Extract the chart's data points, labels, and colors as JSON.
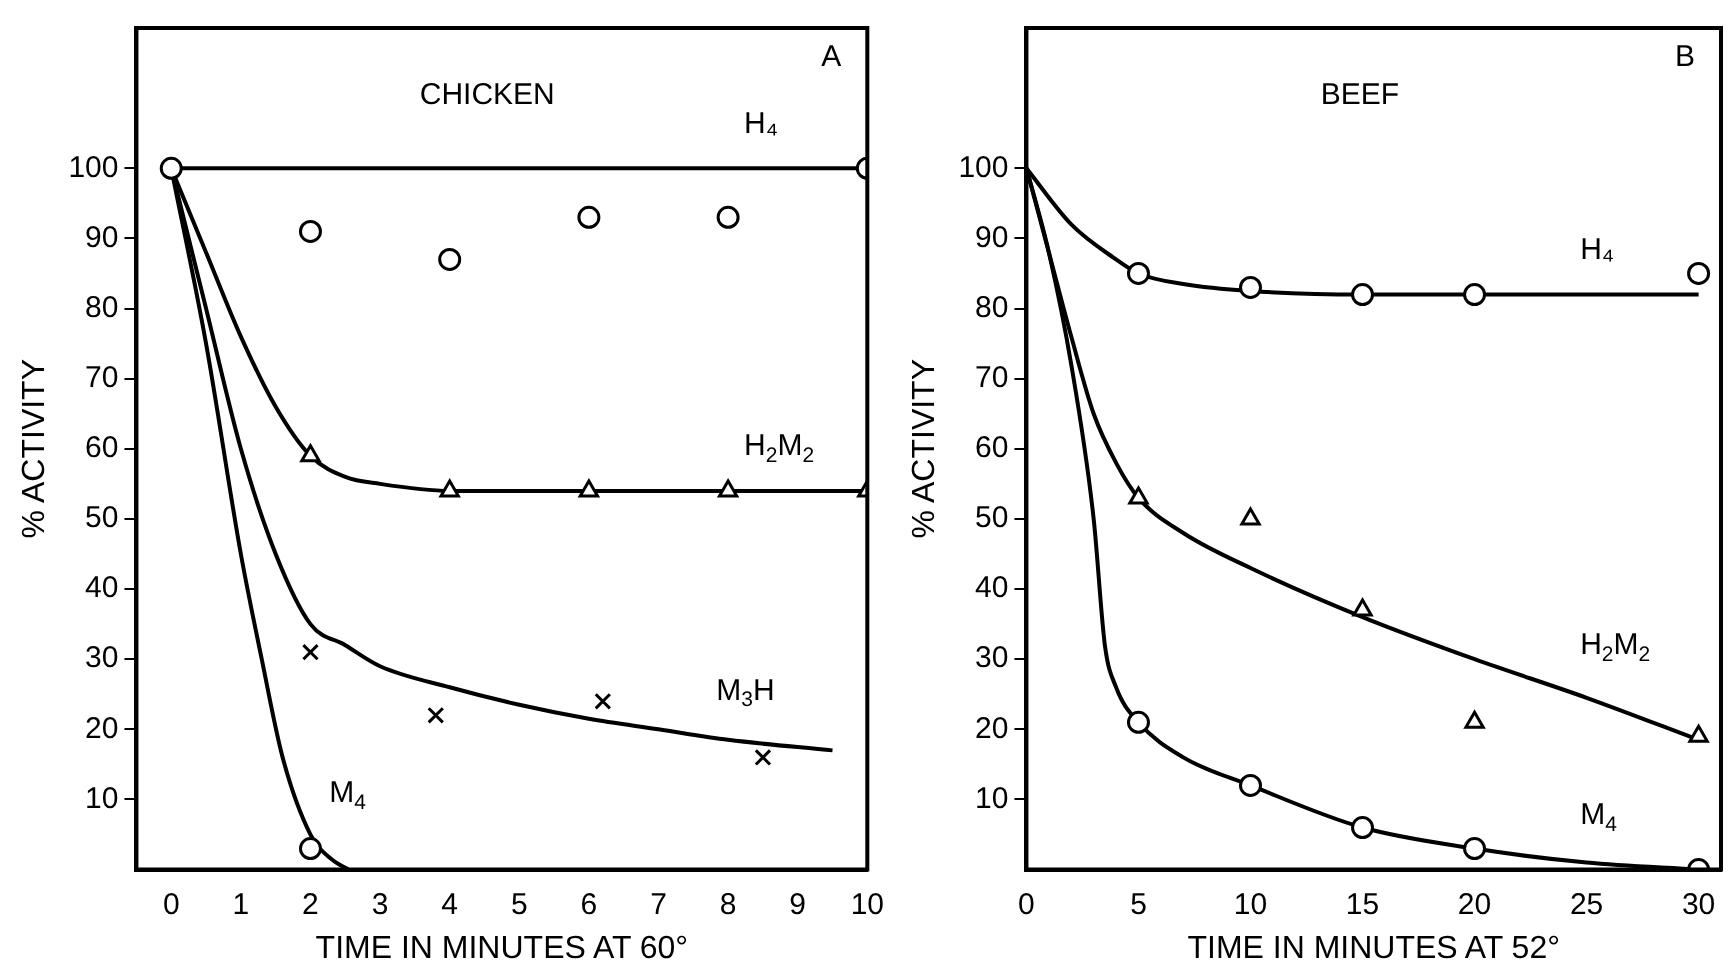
{
  "chart_data": [
    {
      "type": "line",
      "title": "CHICKEN",
      "xlabel": "TIME IN MINUTES AT 60°",
      "ylabel": "% ACTIVITY",
      "xlim": [
        -0.5,
        10
      ],
      "ylim": [
        0,
        120
      ],
      "xticks": [
        0,
        1,
        2,
        3,
        4,
        5,
        6,
        7,
        8,
        9,
        10
      ],
      "yticks": [
        10,
        20,
        30,
        40,
        50,
        60,
        70,
        80,
        90,
        100
      ],
      "grid": false,
      "legend": false,
      "line_style": "solid",
      "annotations": [
        "A"
      ],
      "series": [
        {
          "type": "scatter",
          "marker": "circle",
          "color": "#000000",
          "x": [
            0,
            2,
            4,
            6,
            8,
            10
          ],
          "values": [
            100,
            91,
            87,
            93,
            93,
            100
          ]
        },
        {
          "type": "line",
          "name": "H₄",
          "marker": "none",
          "color": "#000000",
          "x": [
            0,
            10
          ],
          "values": [
            100,
            100
          ]
        },
        {
          "type": "scatter",
          "marker": "triangle",
          "color": "#000000",
          "x": [
            2,
            4,
            6,
            8,
            10
          ],
          "values": [
            59,
            54,
            54,
            54,
            54
          ]
        },
        {
          "type": "line",
          "name": "H$_{2}$M$_{2}$",
          "marker": "none",
          "color": "#000000",
          "x": [
            0,
            0.5,
            1,
            1.5,
            2,
            2.5,
            3,
            4,
            10
          ],
          "values": [
            100,
            88,
            76,
            66,
            59,
            56,
            55,
            54,
            54
          ]
        },
        {
          "type": "scatter",
          "marker": "cross",
          "color": "#000000",
          "x": [
            2,
            3.8,
            6.2,
            8.5
          ],
          "values": [
            31,
            22,
            24,
            16
          ]
        },
        {
          "type": "line",
          "name": "M$_{3}$H",
          "marker": "none",
          "color": "#000000",
          "x": [
            0,
            0.5,
            1,
            1.5,
            2,
            2.5,
            3,
            4,
            5,
            6,
            7,
            8,
            9.5
          ],
          "values": [
            100,
            80,
            60,
            45,
            35,
            32,
            29,
            26,
            23.5,
            21.5,
            20,
            18.5,
            17
          ]
        },
        {
          "type": "scatter",
          "marker": "circle",
          "color": "#000000",
          "x": [
            2
          ],
          "values": [
            3
          ]
        },
        {
          "type": "line",
          "name": "M$_{4}$",
          "marker": "none",
          "color": "#000000",
          "x": [
            0,
            0.5,
            1,
            1.3,
            1.6,
            2,
            2.3,
            2.55
          ],
          "values": [
            100,
            75,
            45,
            30,
            16,
            5,
            1.5,
            0
          ]
        }
      ]
    },
    {
      "type": "line",
      "title": "BEEF",
      "xlabel": "TIME IN MINUTES AT 52°",
      "ylabel": "% ACTIVITY",
      "xlim": [
        0,
        31
      ],
      "ylim": [
        0,
        120
      ],
      "xticks": [
        0,
        5,
        10,
        15,
        20,
        25,
        30
      ],
      "yticks": [
        10,
        20,
        30,
        40,
        50,
        60,
        70,
        80,
        90,
        100
      ],
      "grid": false,
      "legend": false,
      "line_style": "solid",
      "annotations": [
        "B"
      ],
      "series": [
        {
          "type": "scatter",
          "marker": "circle",
          "color": "#000000",
          "x": [
            5,
            10,
            15,
            20,
            30
          ],
          "values": [
            85,
            83,
            82,
            82,
            85
          ]
        },
        {
          "type": "line",
          "name": "H₄",
          "marker": "none",
          "color": "#000000",
          "x": [
            0,
            2,
            4,
            5,
            7,
            10,
            15,
            30
          ],
          "values": [
            100,
            92,
            87,
            85,
            83.5,
            82.5,
            82,
            82
          ]
        },
        {
          "type": "scatter",
          "marker": "triangle",
          "color": "#000000",
          "x": [
            5,
            10,
            15,
            20,
            30
          ],
          "values": [
            53,
            50,
            37,
            21,
            19
          ]
        },
        {
          "type": "line",
          "name": "H$_{2}$M$_{2}$",
          "marker": "none",
          "color": "#000000",
          "x": [
            0,
            1,
            2,
            3,
            4,
            5,
            7,
            10,
            15,
            20,
            25,
            30
          ],
          "values": [
            100,
            88,
            76,
            65,
            58,
            53,
            48,
            43,
            36,
            30,
            24.5,
            18.5
          ]
        },
        {
          "type": "scatter",
          "marker": "circle",
          "color": "#000000",
          "x": [
            5,
            10,
            15,
            20,
            30
          ],
          "values": [
            21,
            12,
            6,
            3,
            0
          ]
        },
        {
          "type": "line",
          "name": "M$_{4}$",
          "marker": "none",
          "color": "#000000",
          "x": [
            0,
            1,
            2,
            3,
            3.5,
            4,
            5,
            7,
            10,
            15,
            20,
            25,
            30
          ],
          "values": [
            100,
            88,
            72,
            50,
            32,
            26,
            21,
            16,
            12,
            6,
            3,
            1,
            0
          ]
        }
      ]
    }
  ]
}
